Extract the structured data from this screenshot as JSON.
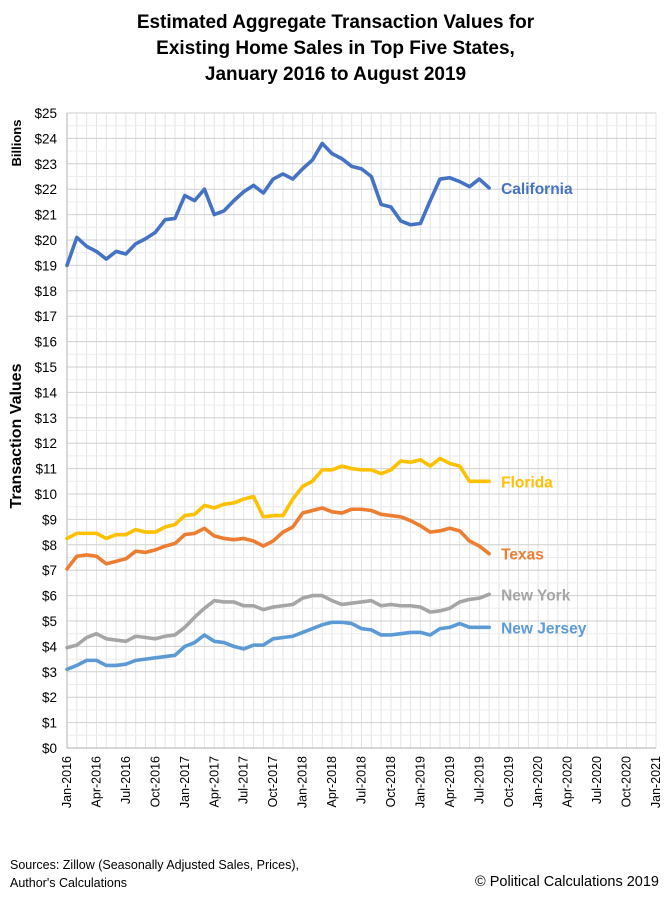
{
  "title_lines": [
    "Estimated Aggregate Transaction Values for",
    "Existing Home Sales in Top Five States,",
    "January 2016 to August 2019"
  ],
  "sources": [
    "Sources: Zillow (Seasonally Adjusted Sales, Prices),",
    "Author's Calculations"
  ],
  "credit": "© Political Calculations 2019",
  "chart_data": {
    "type": "line",
    "title": "Estimated Aggregate Transaction Values for Existing Home Sales in Top Five States, January 2016 to August 2019",
    "ylabel": "Transaction Values",
    "yunit": "Billions",
    "ylim": [
      0,
      25
    ],
    "yticks": [
      "$0",
      "$1",
      "$2",
      "$3",
      "$4",
      "$5",
      "$6",
      "$7",
      "$8",
      "$9",
      "$10",
      "$11",
      "$12",
      "$13",
      "$14",
      "$15",
      "$16",
      "$17",
      "$18",
      "$19",
      "$20",
      "$21",
      "$22",
      "$23",
      "$24",
      "$25"
    ],
    "xlim": [
      "Jan-2016",
      "Jan-2021"
    ],
    "xticks": [
      "Jan-2016",
      "Apr-2016",
      "Jul-2016",
      "Oct-2016",
      "Jan-2017",
      "Apr-2017",
      "Jul-2017",
      "Oct-2017",
      "Jan-2018",
      "Apr-2018",
      "Jul-2018",
      "Oct-2018",
      "Jan-2019",
      "Apr-2019",
      "Jul-2019",
      "Oct-2019",
      "Jan-2020",
      "Apr-2020",
      "Jul-2020",
      "Oct-2020",
      "Jan-2021"
    ],
    "grid": true,
    "x": [
      "Jan-2016",
      "Feb-2016",
      "Mar-2016",
      "Apr-2016",
      "May-2016",
      "Jun-2016",
      "Jul-2016",
      "Aug-2016",
      "Sep-2016",
      "Oct-2016",
      "Nov-2016",
      "Dec-2016",
      "Jan-2017",
      "Feb-2017",
      "Mar-2017",
      "Apr-2017",
      "May-2017",
      "Jun-2017",
      "Jul-2017",
      "Aug-2017",
      "Sep-2017",
      "Oct-2017",
      "Nov-2017",
      "Dec-2017",
      "Jan-2018",
      "Feb-2018",
      "Mar-2018",
      "Apr-2018",
      "May-2018",
      "Jun-2018",
      "Jul-2018",
      "Aug-2018",
      "Sep-2018",
      "Oct-2018",
      "Nov-2018",
      "Dec-2018",
      "Jan-2019",
      "Feb-2019",
      "Mar-2019",
      "Apr-2019",
      "May-2019",
      "Jun-2019",
      "Jul-2019",
      "Aug-2019"
    ],
    "series": [
      {
        "name": "California",
        "color": "#4472C4",
        "values": [
          19.0,
          20.1,
          19.75,
          19.55,
          19.25,
          19.55,
          19.45,
          19.85,
          20.05,
          20.3,
          20.8,
          20.85,
          21.75,
          21.55,
          22.0,
          21.0,
          21.15,
          21.55,
          21.9,
          22.15,
          21.85,
          22.4,
          22.6,
          22.4,
          22.8,
          23.15,
          23.8,
          23.4,
          23.2,
          22.9,
          22.8,
          22.5,
          21.4,
          21.3,
          20.75,
          20.6,
          20.65,
          21.55,
          22.4,
          22.45,
          22.3,
          22.1,
          22.4,
          22.05
        ]
      },
      {
        "name": "Florida",
        "color": "#FFC000",
        "values": [
          8.25,
          8.45,
          8.45,
          8.45,
          8.25,
          8.4,
          8.4,
          8.6,
          8.5,
          8.5,
          8.7,
          8.8,
          9.15,
          9.2,
          9.55,
          9.45,
          9.6,
          9.65,
          9.8,
          9.9,
          9.1,
          9.15,
          9.15,
          9.8,
          10.3,
          10.5,
          10.95,
          10.95,
          11.1,
          11.0,
          10.95,
          10.95,
          10.8,
          10.95,
          11.3,
          11.25,
          11.35,
          11.1,
          11.4,
          11.2,
          11.1,
          10.5,
          10.5,
          10.5
        ]
      },
      {
        "name": "Texas",
        "color": "#ED7D31",
        "values": [
          7.05,
          7.55,
          7.6,
          7.55,
          7.25,
          7.35,
          7.45,
          7.75,
          7.7,
          7.8,
          7.95,
          8.05,
          8.4,
          8.45,
          8.65,
          8.35,
          8.25,
          8.2,
          8.25,
          8.15,
          7.95,
          8.15,
          8.5,
          8.7,
          9.25,
          9.35,
          9.45,
          9.3,
          9.25,
          9.4,
          9.4,
          9.35,
          9.2,
          9.15,
          9.1,
          8.95,
          8.75,
          8.5,
          8.55,
          8.65,
          8.55,
          8.15,
          7.95,
          7.65
        ]
      },
      {
        "name": "New York",
        "color": "#A5A5A5",
        "values": [
          3.95,
          4.05,
          4.35,
          4.5,
          4.3,
          4.25,
          4.2,
          4.4,
          4.35,
          4.3,
          4.4,
          4.45,
          4.75,
          5.15,
          5.5,
          5.8,
          5.75,
          5.75,
          5.6,
          5.6,
          5.45,
          5.55,
          5.6,
          5.65,
          5.9,
          6.0,
          6.0,
          5.8,
          5.65,
          5.7,
          5.75,
          5.8,
          5.6,
          5.65,
          5.6,
          5.6,
          5.55,
          5.35,
          5.4,
          5.5,
          5.75,
          5.85,
          5.9,
          6.05
        ]
      },
      {
        "name": "New Jersey",
        "color": "#5B9BD5",
        "values": [
          3.1,
          3.25,
          3.45,
          3.45,
          3.25,
          3.25,
          3.3,
          3.45,
          3.5,
          3.55,
          3.6,
          3.65,
          4.0,
          4.15,
          4.45,
          4.2,
          4.15,
          4.0,
          3.9,
          4.05,
          4.05,
          4.3,
          4.35,
          4.4,
          4.55,
          4.7,
          4.85,
          4.95,
          4.95,
          4.9,
          4.7,
          4.65,
          4.45,
          4.45,
          4.5,
          4.55,
          4.55,
          4.45,
          4.7,
          4.75,
          4.9,
          4.75,
          4.75,
          4.75
        ]
      }
    ]
  }
}
